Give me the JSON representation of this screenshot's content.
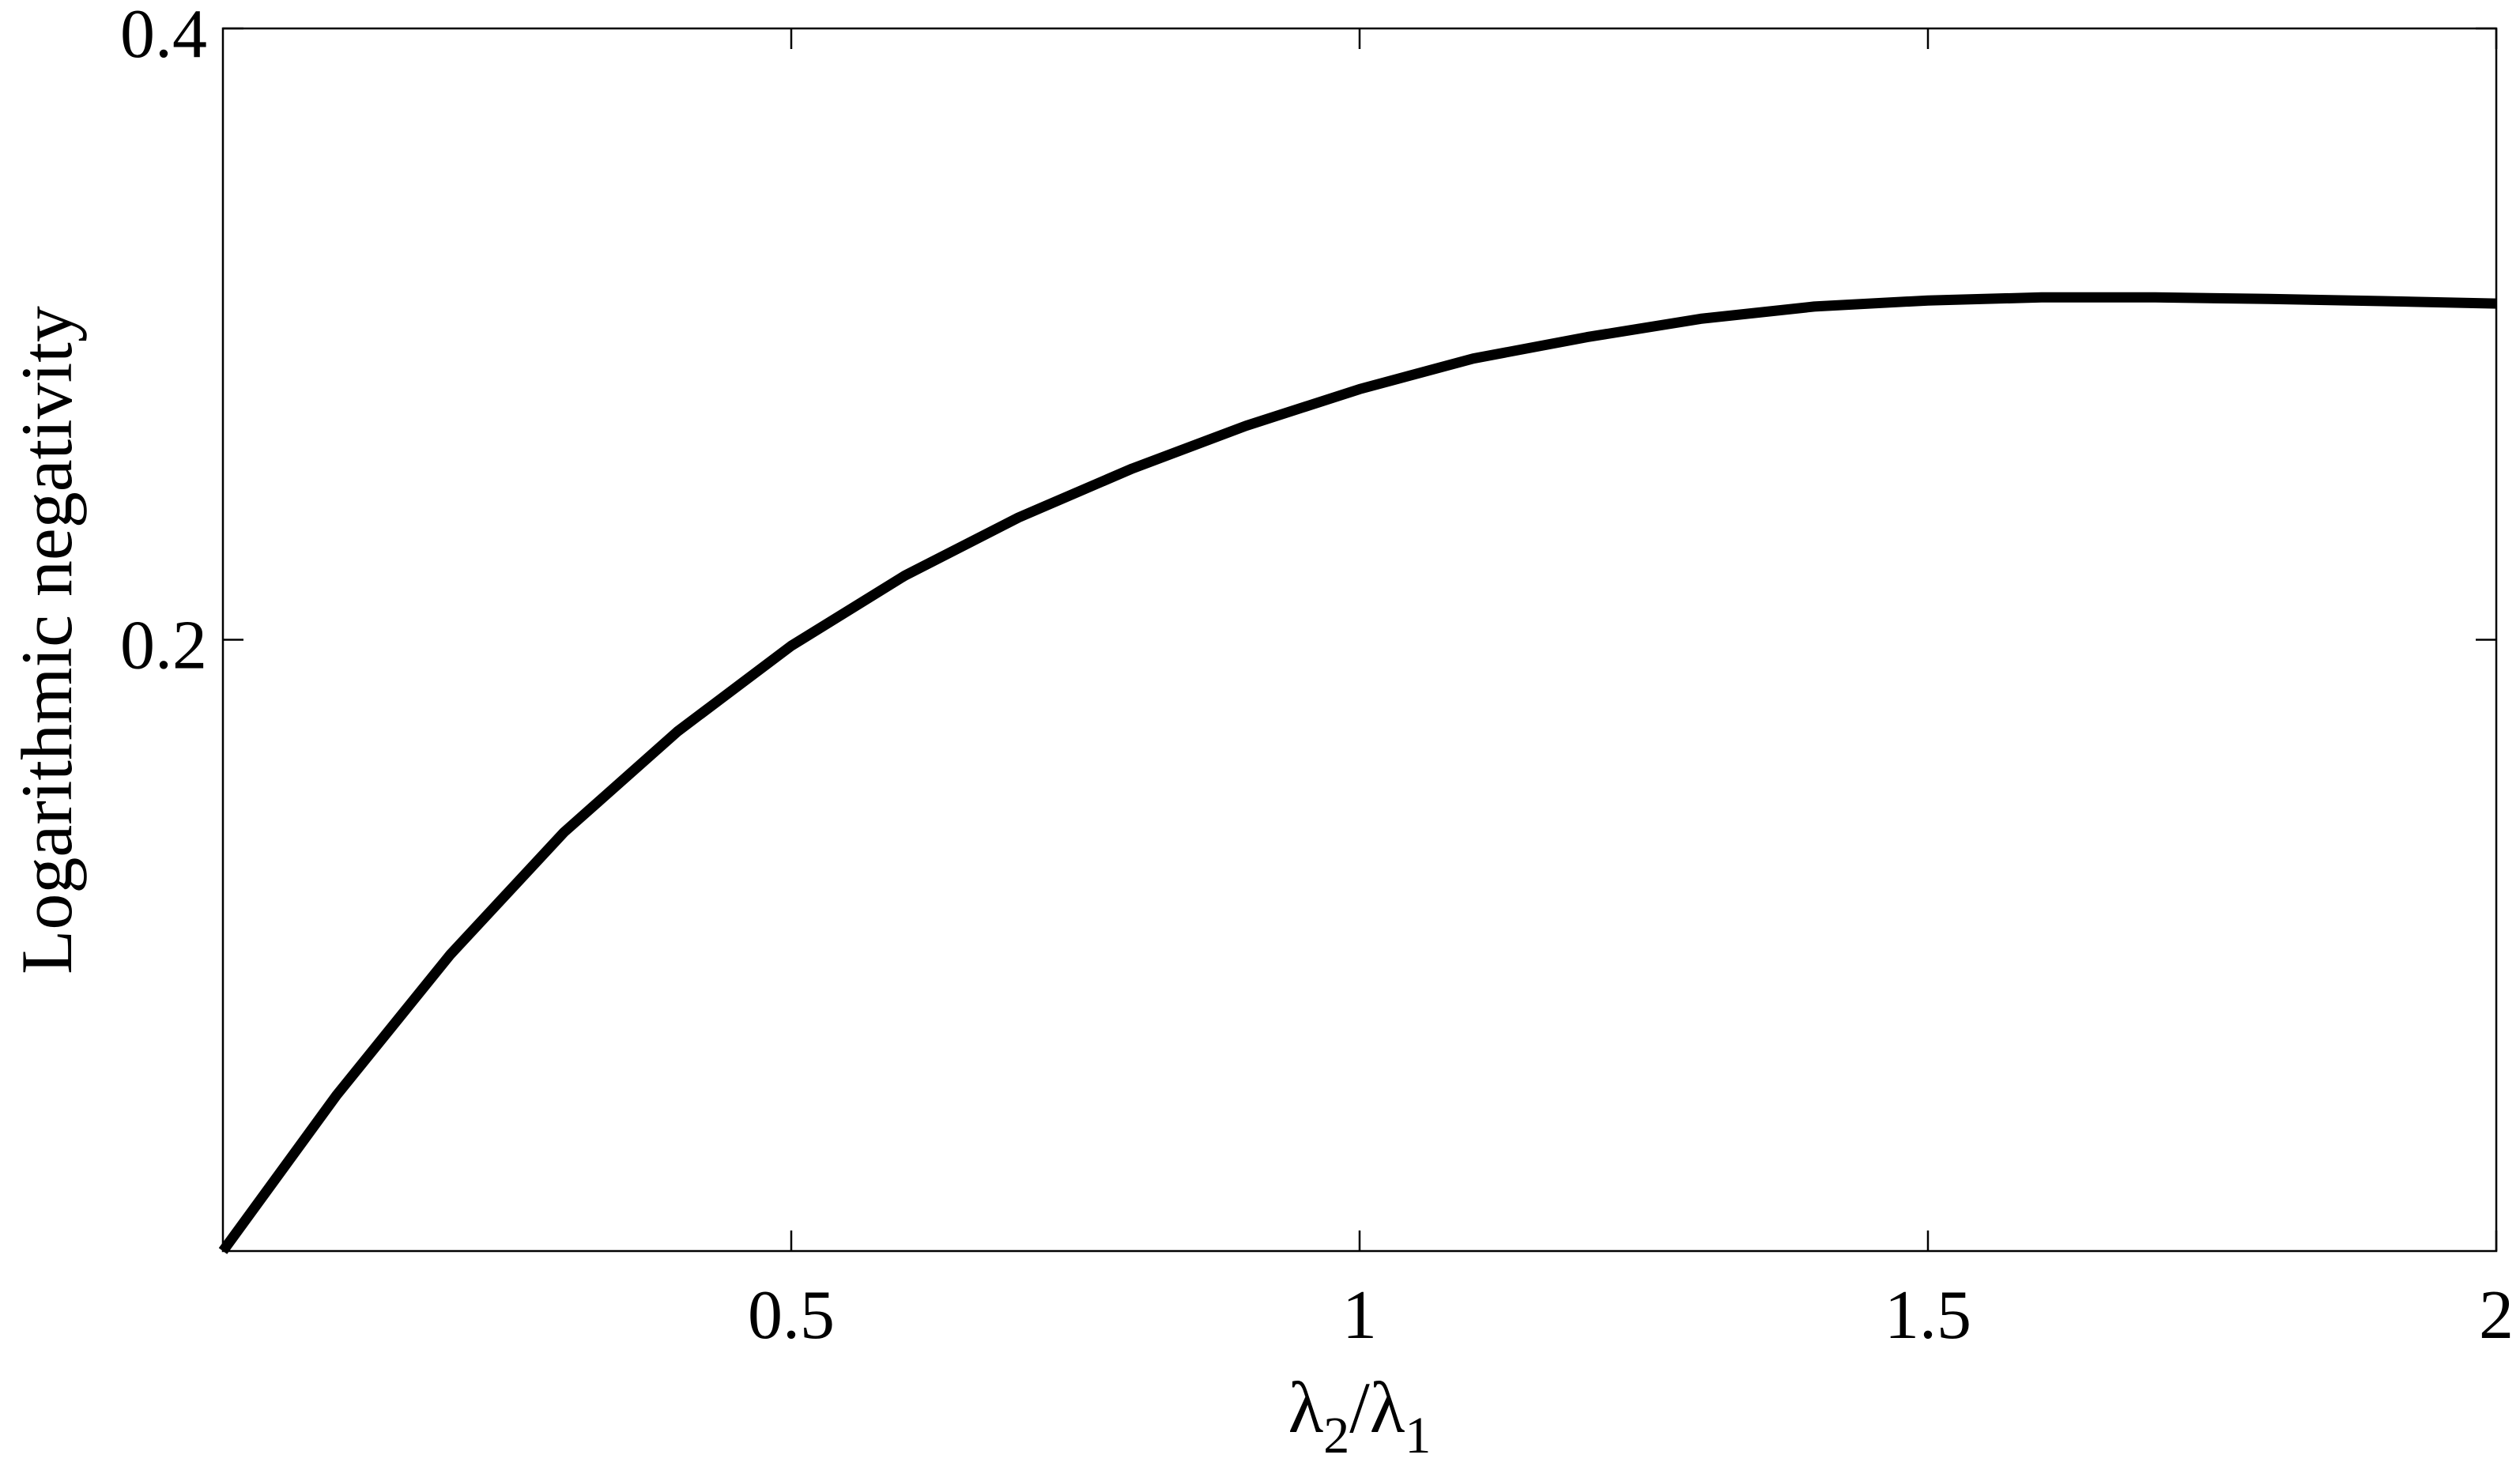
{
  "chart_data": {
    "type": "line",
    "title": "",
    "xlabel": {
      "symbol": "λ",
      "sub1": "2",
      "sep": "/",
      "sub2": "1"
    },
    "ylabel": "Logarithmic negativity",
    "xlim": [
      0,
      2
    ],
    "ylim": [
      0,
      0.4
    ],
    "xticks": [
      0.5,
      1,
      1.5,
      2
    ],
    "xtick_labels": [
      "0.5",
      "1",
      "1.5",
      "2"
    ],
    "yticks": [
      0.2,
      0.4
    ],
    "ytick_labels": [
      "0.2",
      "0.4"
    ],
    "grid": false,
    "line_color": "#000000",
    "series": [
      {
        "x": [
          0,
          0.1,
          0.2,
          0.3,
          0.4,
          0.5,
          0.6,
          0.7,
          0.8,
          0.9,
          1.0,
          1.1,
          1.2,
          1.3,
          1.4,
          1.5,
          1.6,
          1.7,
          1.8,
          1.9,
          2.0
        ],
        "y": [
          0,
          0.051,
          0.097,
          0.137,
          0.17,
          0.198,
          0.221,
          0.24,
          0.256,
          0.27,
          0.282,
          0.292,
          0.299,
          0.305,
          0.309,
          0.311,
          0.312,
          0.312,
          0.3115,
          0.3108,
          0.31
        ]
      }
    ]
  }
}
